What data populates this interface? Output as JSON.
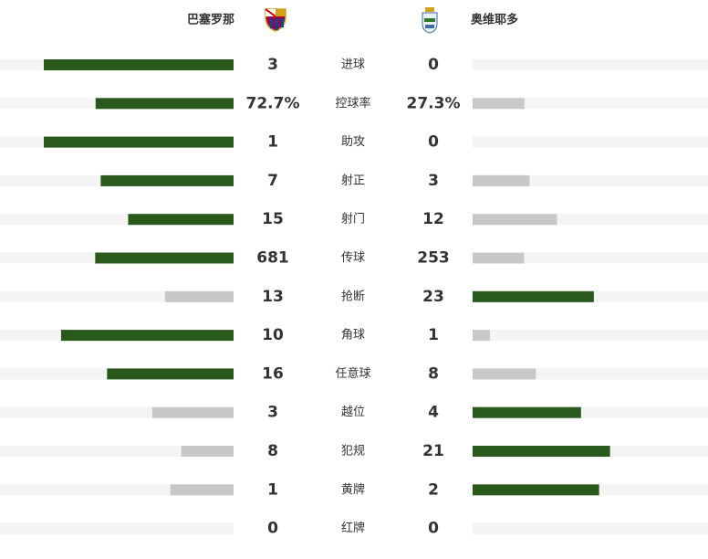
{
  "home": {
    "name": "巴塞罗那"
  },
  "away": {
    "name": "奥维耶多"
  },
  "stats": [
    {
      "label": "进球",
      "home": 3,
      "away": 0
    },
    {
      "label": "控球率",
      "home": 72.7,
      "away": 27.3,
      "home_label": "72.7%",
      "away_label": "27.3%"
    },
    {
      "label": "助攻",
      "home": 1,
      "away": 0
    },
    {
      "label": "射正",
      "home": 7,
      "away": 3
    },
    {
      "label": "射门",
      "home": 15,
      "away": 12
    },
    {
      "label": "传球",
      "home": 681,
      "away": 253
    },
    {
      "label": "抢断",
      "home": 13,
      "away": 23
    },
    {
      "label": "角球",
      "home": 10,
      "away": 1
    },
    {
      "label": "任意球",
      "home": 16,
      "away": 8
    },
    {
      "label": "越位",
      "home": 3,
      "away": 4
    },
    {
      "label": "犯规",
      "home": 8,
      "away": 21
    },
    {
      "label": "黄牌",
      "home": 1,
      "away": 2
    },
    {
      "label": "红牌",
      "home": 0,
      "away": 0
    }
  ]
}
